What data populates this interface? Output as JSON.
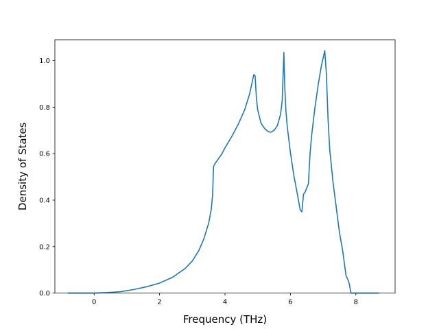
{
  "chart_data": {
    "type": "line",
    "title": "",
    "xlabel": "Frequency (THz)",
    "ylabel": "Density of States",
    "xlim": [
      -1.2,
      9.2
    ],
    "ylim": [
      0.0,
      1.09
    ],
    "xticks": [
      "0",
      "2",
      "4",
      "6",
      "8"
    ],
    "yticks": [
      "0.0",
      "0.2",
      "0.4",
      "0.6",
      "0.8",
      "1.0"
    ],
    "grid": false,
    "legend": "none",
    "line_color": "#1f77b4",
    "series": [
      {
        "x": [
          -0.8,
          0.0,
          0.4,
          0.8,
          1.2,
          1.6,
          2.0,
          2.4,
          2.8,
          3.0,
          3.2,
          3.35,
          3.5,
          3.58,
          3.62,
          3.65,
          3.7,
          3.8,
          3.9,
          4.0,
          4.2,
          4.4,
          4.6,
          4.75,
          4.82,
          4.88,
          4.92,
          4.96,
          5.0,
          5.1,
          5.2,
          5.3,
          5.4,
          5.5,
          5.6,
          5.7,
          5.75,
          5.8,
          5.83,
          5.86,
          5.9,
          6.0,
          6.1,
          6.2,
          6.3,
          6.35,
          6.4,
          6.45,
          6.55,
          6.6,
          6.65,
          6.75,
          6.85,
          6.95,
          7.05,
          7.1,
          7.15,
          7.2,
          7.3,
          7.4,
          7.5,
          7.6,
          7.7,
          7.75,
          7.8,
          7.85,
          7.9,
          8.0,
          8.7
        ],
        "y": [
          0.0,
          0.0,
          0.002,
          0.006,
          0.015,
          0.027,
          0.043,
          0.068,
          0.108,
          0.138,
          0.183,
          0.232,
          0.3,
          0.36,
          0.42,
          0.545,
          0.558,
          0.578,
          0.598,
          0.625,
          0.672,
          0.725,
          0.788,
          0.856,
          0.9,
          0.94,
          0.935,
          0.84,
          0.788,
          0.732,
          0.71,
          0.697,
          0.692,
          0.7,
          0.72,
          0.77,
          0.83,
          1.035,
          0.88,
          0.79,
          0.72,
          0.605,
          0.51,
          0.435,
          0.357,
          0.35,
          0.425,
          0.435,
          0.47,
          0.6,
          0.68,
          0.798,
          0.898,
          0.98,
          1.043,
          0.94,
          0.75,
          0.62,
          0.48,
          0.37,
          0.26,
          0.18,
          0.075,
          0.06,
          0.04,
          0.0,
          0.0,
          0.0,
          0.0
        ]
      }
    ]
  }
}
